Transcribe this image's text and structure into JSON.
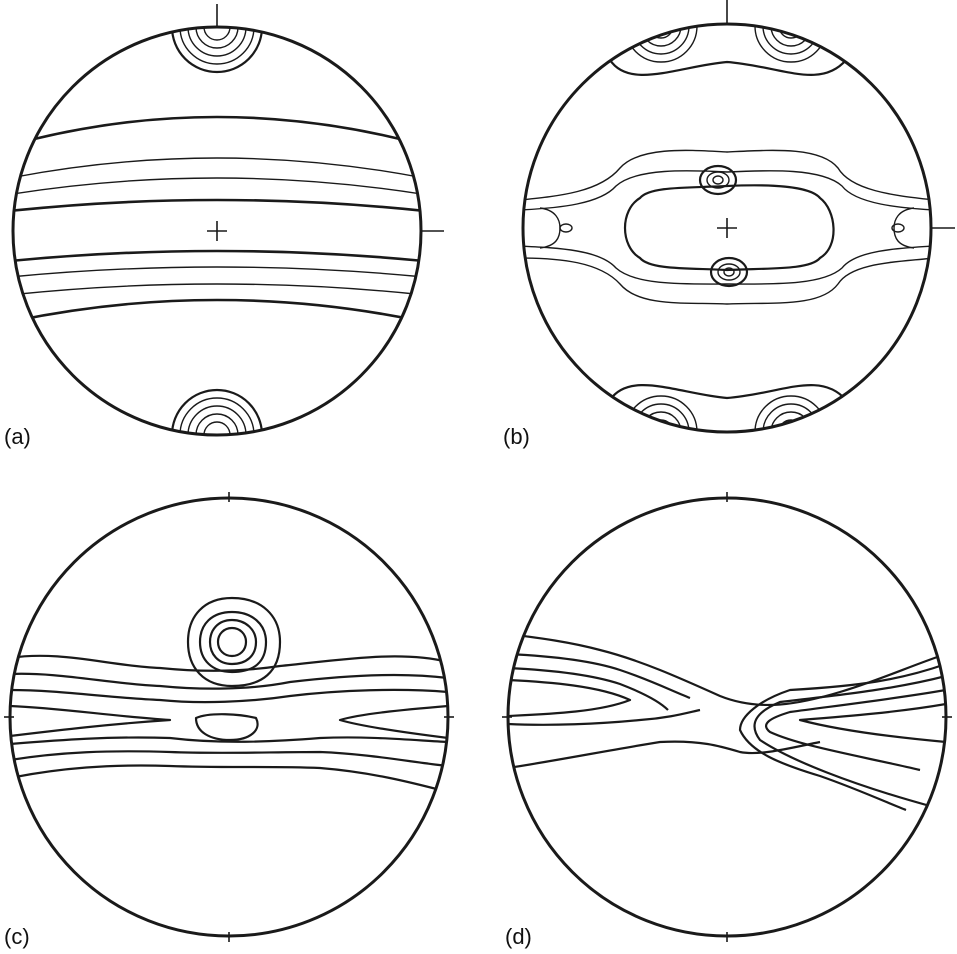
{
  "panels": [
    {
      "id": "a",
      "label": "(a)"
    },
    {
      "id": "b",
      "label": "(b)"
    },
    {
      "id": "c",
      "label": "(c)"
    },
    {
      "id": "d",
      "label": "(d)"
    }
  ],
  "colors": {
    "line": "#1a1a1a",
    "background": "#ffffff"
  }
}
